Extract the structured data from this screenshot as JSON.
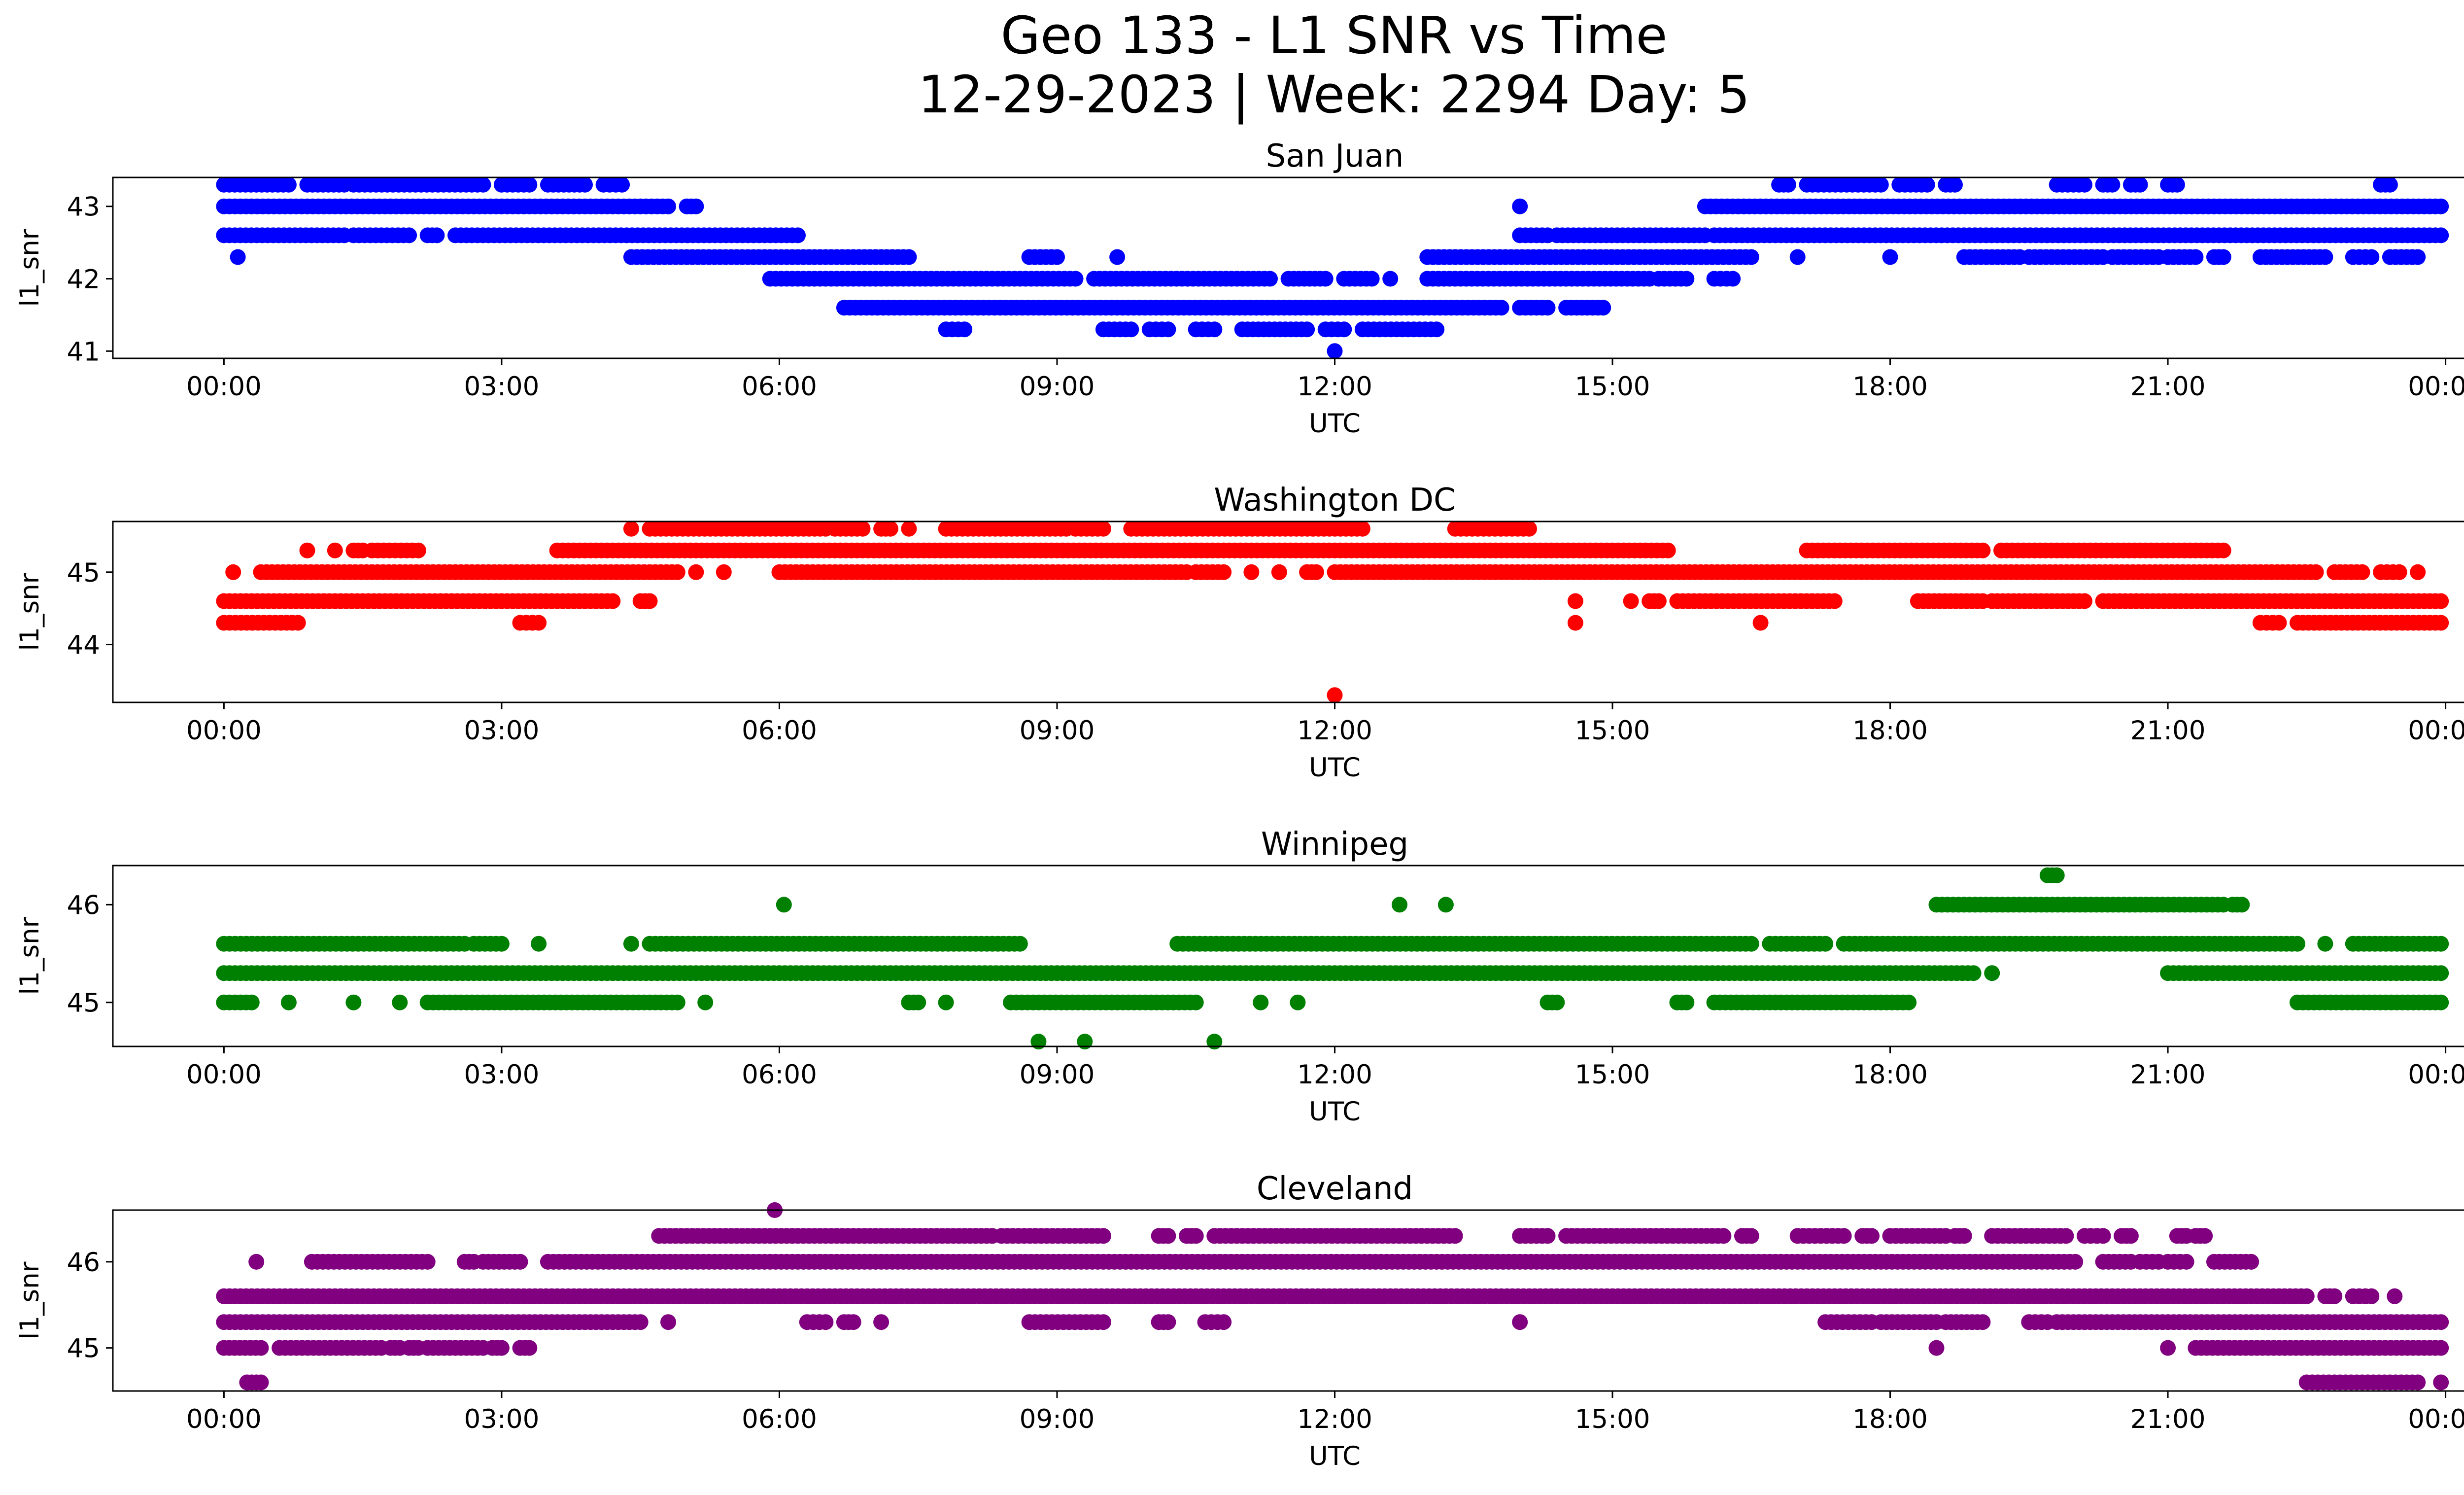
{
  "suptitle": {
    "line1": "Geo 133 - L1 SNR vs Time",
    "line2": "12-29-2023 | Week: 2294 Day: 5"
  },
  "x_axis": {
    "xlabel": "UTC",
    "tick_labels": [
      "00:00",
      "03:00",
      "06:00",
      "09:00",
      "12:00",
      "15:00",
      "18:00",
      "21:00",
      "00:00"
    ],
    "tick_values_hours": [
      0,
      3,
      6,
      9,
      12,
      15,
      18,
      21,
      24
    ]
  },
  "chart_data": [
    {
      "type": "scatter",
      "title": "San Juan",
      "xlabel": "UTC",
      "ylabel": "l1_snr",
      "color": "#0000ff",
      "xlim": [
        -1.2,
        25.2
      ],
      "ylim": [
        40.9,
        43.4
      ],
      "y_ticks": [
        41,
        42,
        43
      ],
      "y_tick_labels": [
        "41",
        "42",
        "43"
      ],
      "grid": false,
      "series": [
        {
          "y": 43.3,
          "segments": [
            [
              0.0,
              0.7
            ],
            [
              0.9,
              1.3
            ],
            [
              1.4,
              2.8
            ],
            [
              3.0,
              3.3
            ],
            [
              3.5,
              3.9
            ],
            [
              4.1,
              4.3
            ],
            [
              16.8,
              16.9
            ],
            [
              17.1,
              17.9
            ],
            [
              18.1,
              18.4
            ],
            [
              18.6,
              18.7
            ],
            [
              19.8,
              20.1
            ],
            [
              20.3,
              20.4
            ],
            [
              20.6,
              20.7
            ],
            [
              21.0,
              21.1
            ],
            [
              23.3,
              23.4
            ]
          ]
        },
        {
          "y": 43.0,
          "segments": [
            [
              0.0,
              4.8
            ],
            [
              5.0,
              5.1
            ],
            [
              14.0,
              14.0
            ],
            [
              16.0,
              23.95
            ]
          ]
        },
        {
          "y": 42.6,
          "segments": [
            [
              0.0,
              1.3
            ],
            [
              1.4,
              2.0
            ],
            [
              2.2,
              2.3
            ],
            [
              2.5,
              6.2
            ],
            [
              14.0,
              14.3
            ],
            [
              14.4,
              16.0
            ],
            [
              16.1,
              23.95
            ]
          ]
        },
        {
          "y": 42.3,
          "segments": [
            [
              0.15,
              0.15
            ],
            [
              4.4,
              7.4
            ],
            [
              13.0,
              16.5
            ],
            [
              17.0,
              17.0
            ],
            [
              18.0,
              18.0
            ],
            [
              18.8,
              19.4
            ],
            [
              19.5,
              20.3
            ],
            [
              20.4,
              20.9
            ],
            [
              21.0,
              21.3
            ],
            [
              21.5,
              21.6
            ],
            [
              22.0,
              22.7
            ],
            [
              23.0,
              23.2
            ],
            [
              23.4,
              23.7
            ]
          ]
        },
        {
          "y": 42.0,
          "segments": [
            [
              5.9,
              9.2
            ],
            [
              9.4,
              11.3
            ],
            [
              11.5,
              11.9
            ],
            [
              12.1,
              12.4
            ],
            [
              12.6,
              12.6
            ],
            [
              13.0,
              15.4
            ],
            [
              15.5,
              15.8
            ],
            [
              16.1,
              16.3
            ]
          ]
        },
        {
          "y": 41.6,
          "segments": [
            [
              6.7,
              13.8
            ],
            [
              14.0,
              14.3
            ],
            [
              14.5,
              14.9
            ]
          ]
        },
        {
          "y": 41.3,
          "segments": [
            [
              7.8,
              8.0
            ],
            [
              9.5,
              9.8
            ],
            [
              10.0,
              10.2
            ],
            [
              10.5,
              10.7
            ],
            [
              11.0,
              11.7
            ],
            [
              11.9,
              12.1
            ],
            [
              12.3,
              13.1
            ]
          ]
        },
        {
          "y": 41.0,
          "segments": [
            [
              12.0,
              12.0
            ]
          ]
        },
        {
          "y": 42.3,
          "segments": [
            [
              8.7,
              9.0
            ],
            [
              9.65,
              9.65
            ]
          ]
        }
      ]
    },
    {
      "type": "scatter",
      "title": "Washington DC",
      "xlabel": "UTC",
      "ylabel": "l1_snr",
      "color": "#ff0000",
      "xlim": [
        -1.2,
        25.2
      ],
      "ylim": [
        43.2,
        45.7
      ],
      "y_ticks": [
        44,
        45
      ],
      "y_tick_labels": [
        "44",
        "45"
      ],
      "grid": false,
      "series": [
        {
          "y": 45.6,
          "segments": [
            [
              4.4,
              4.4
            ],
            [
              4.6,
              6.5
            ],
            [
              6.6,
              6.9
            ],
            [
              7.1,
              7.2
            ],
            [
              7.4,
              7.4
            ],
            [
              7.8,
              9.1
            ],
            [
              9.2,
              9.5
            ],
            [
              9.8,
              12.3
            ],
            [
              13.3,
              14.1
            ]
          ]
        },
        {
          "y": 45.3,
          "segments": [
            [
              0.9,
              0.9
            ],
            [
              1.2,
              1.2
            ],
            [
              1.4,
              1.5
            ],
            [
              1.6,
              2.1
            ],
            [
              3.6,
              15.6
            ],
            [
              17.1,
              19.0
            ],
            [
              19.2,
              21.6
            ]
          ]
        },
        {
          "y": 45.0,
          "segments": [
            [
              0.1,
              0.1
            ],
            [
              0.4,
              4.9
            ],
            [
              5.1,
              5.1
            ],
            [
              5.4,
              5.4
            ],
            [
              6.0,
              10.4
            ],
            [
              10.5,
              10.8
            ],
            [
              11.1,
              11.1
            ],
            [
              11.4,
              11.4
            ],
            [
              11.7,
              11.8
            ],
            [
              12.0,
              22.6
            ],
            [
              22.8,
              23.1
            ],
            [
              23.3,
              23.5
            ],
            [
              23.7,
              23.7
            ]
          ]
        },
        {
          "y": 44.6,
          "segments": [
            [
              0.0,
              4.2
            ],
            [
              4.5,
              4.6
            ],
            [
              14.6,
              14.6
            ],
            [
              15.2,
              15.2
            ],
            [
              15.4,
              15.5
            ],
            [
              15.7,
              17.4
            ],
            [
              18.3,
              19.0
            ],
            [
              19.1,
              20.1
            ],
            [
              20.3,
              23.95
            ]
          ]
        },
        {
          "y": 44.3,
          "segments": [
            [
              0.0,
              0.8
            ],
            [
              3.2,
              3.4
            ],
            [
              14.6,
              14.6
            ],
            [
              16.6,
              16.6
            ],
            [
              22.0,
              22.2
            ],
            [
              22.4,
              23.95
            ]
          ]
        },
        {
          "y": 43.3,
          "segments": [
            [
              12.0,
              12.0
            ]
          ]
        }
      ]
    },
    {
      "type": "scatter",
      "title": "Winnipeg",
      "xlabel": "UTC",
      "ylabel": "l1_snr",
      "color": "#008000",
      "xlim": [
        -1.2,
        25.2
      ],
      "ylim": [
        44.55,
        46.4
      ],
      "y_ticks": [
        45,
        46
      ],
      "y_tick_labels": [
        "45",
        "46"
      ],
      "grid": false,
      "series": [
        {
          "y": 46.3,
          "segments": [
            [
              19.7,
              19.8
            ]
          ]
        },
        {
          "y": 46.0,
          "segments": [
            [
              6.05,
              6.05
            ],
            [
              12.7,
              12.7
            ],
            [
              13.2,
              13.2
            ],
            [
              18.5,
              21.6
            ],
            [
              21.7,
              21.8
            ]
          ]
        },
        {
          "y": 45.6,
          "segments": [
            [
              0.0,
              2.6
            ],
            [
              2.7,
              3.0
            ],
            [
              3.4,
              3.4
            ],
            [
              4.4,
              4.4
            ],
            [
              4.6,
              8.6
            ],
            [
              10.3,
              16.5
            ],
            [
              16.7,
              17.3
            ],
            [
              17.5,
              22.4
            ],
            [
              22.7,
              22.7
            ],
            [
              23.0,
              23.95
            ]
          ]
        },
        {
          "y": 45.3,
          "segments": [
            [
              0.0,
              18.9
            ],
            [
              19.1,
              19.1
            ],
            [
              21.0,
              23.95
            ]
          ]
        },
        {
          "y": 45.0,
          "segments": [
            [
              0.0,
              0.3
            ],
            [
              0.7,
              0.7
            ],
            [
              1.4,
              1.4
            ],
            [
              1.9,
              1.9
            ],
            [
              2.2,
              4.9
            ],
            [
              5.2,
              5.2
            ],
            [
              7.4,
              7.5
            ],
            [
              7.8,
              7.8
            ],
            [
              8.5,
              10.5
            ],
            [
              11.2,
              11.2
            ],
            [
              11.6,
              11.6
            ],
            [
              14.3,
              14.4
            ],
            [
              15.7,
              15.8
            ],
            [
              16.1,
              18.2
            ],
            [
              22.4,
              23.95
            ]
          ]
        },
        {
          "y": 44.6,
          "segments": [
            [
              8.8,
              8.8
            ],
            [
              9.3,
              9.3
            ],
            [
              10.7,
              10.7
            ]
          ]
        }
      ]
    },
    {
      "type": "scatter",
      "title": "Cleveland",
      "xlabel": "UTC",
      "ylabel": "l1_snr",
      "color": "#800080",
      "xlim": [
        -1.2,
        25.2
      ],
      "ylim": [
        44.5,
        46.6
      ],
      "y_ticks": [
        45,
        46
      ],
      "y_tick_labels": [
        "45",
        "46"
      ],
      "grid": false,
      "series": [
        {
          "y": 46.6,
          "segments": [
            [
              5.95,
              5.95
            ]
          ]
        },
        {
          "y": 46.3,
          "segments": [
            [
              4.7,
              8.3
            ],
            [
              8.4,
              9.5
            ],
            [
              10.1,
              10.2
            ],
            [
              10.4,
              10.5
            ],
            [
              10.7,
              13.3
            ],
            [
              14.0,
              14.3
            ],
            [
              14.5,
              16.2
            ],
            [
              16.4,
              16.5
            ],
            [
              17.0,
              17.5
            ],
            [
              17.7,
              17.8
            ],
            [
              18.0,
              18.6
            ],
            [
              18.7,
              18.8
            ],
            [
              19.1,
              19.9
            ],
            [
              20.1,
              20.3
            ],
            [
              20.5,
              20.6
            ],
            [
              21.1,
              21.2
            ],
            [
              21.3,
              21.4
            ]
          ]
        },
        {
          "y": 46.0,
          "segments": [
            [
              0.35,
              0.35
            ],
            [
              0.95,
              2.2
            ],
            [
              2.6,
              2.7
            ],
            [
              2.8,
              3.2
            ],
            [
              3.5,
              20.0
            ],
            [
              20.3,
              20.6
            ],
            [
              20.7,
              20.9
            ],
            [
              21.0,
              21.2
            ],
            [
              21.5,
              21.9
            ]
          ]
        },
        {
          "y": 45.6,
          "segments": [
            [
              0.0,
              22.5
            ],
            [
              22.7,
              22.8
            ],
            [
              23.0,
              23.2
            ],
            [
              23.45,
              23.45
            ]
          ]
        },
        {
          "y": 45.3,
          "segments": [
            [
              0.0,
              4.5
            ],
            [
              4.8,
              4.8
            ],
            [
              6.3,
              6.5
            ],
            [
              6.7,
              6.8
            ],
            [
              7.1,
              7.1
            ],
            [
              8.7,
              9.5
            ],
            [
              10.1,
              10.2
            ],
            [
              10.6,
              10.8
            ],
            [
              14.0,
              14.0
            ],
            [
              17.3,
              17.8
            ],
            [
              17.9,
              18.5
            ],
            [
              18.6,
              19.0
            ],
            [
              19.5,
              19.7
            ],
            [
              19.8,
              23.95
            ]
          ]
        },
        {
          "y": 45.0,
          "segments": [
            [
              0.0,
              0.4
            ],
            [
              0.6,
              1.7
            ],
            [
              1.8,
              1.9
            ],
            [
              2.0,
              2.1
            ],
            [
              2.2,
              2.8
            ],
            [
              2.9,
              3.0
            ],
            [
              3.2,
              3.3
            ],
            [
              18.5,
              18.5
            ],
            [
              21.0,
              21.0
            ],
            [
              21.3,
              23.95
            ]
          ]
        },
        {
          "y": 44.6,
          "segments": [
            [
              0.25,
              0.4
            ],
            [
              22.5,
              23.7
            ],
            [
              23.95,
              23.95
            ]
          ]
        }
      ]
    }
  ]
}
